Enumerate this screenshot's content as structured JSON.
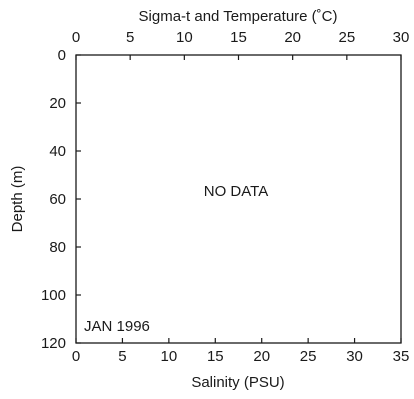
{
  "chart_data": {
    "type": "scatter",
    "title": "",
    "top_axis": {
      "label": "Sigma-t and Temperature (˚C)",
      "range": [
        0,
        30
      ],
      "ticks": [
        0,
        5,
        10,
        15,
        20,
        25,
        30
      ]
    },
    "bottom_axis": {
      "label": "Salinity (PSU)",
      "range": [
        0,
        35
      ],
      "ticks": [
        0,
        5,
        10,
        15,
        20,
        25,
        30,
        35
      ]
    },
    "left_axis": {
      "label": "Depth (m)",
      "range": [
        0,
        120
      ],
      "inverted": true,
      "ticks": [
        0,
        20,
        40,
        60,
        80,
        100,
        120
      ]
    },
    "series": [],
    "annotations": {
      "no_data": "NO DATA",
      "date": "JAN 1996"
    },
    "grid": false
  }
}
